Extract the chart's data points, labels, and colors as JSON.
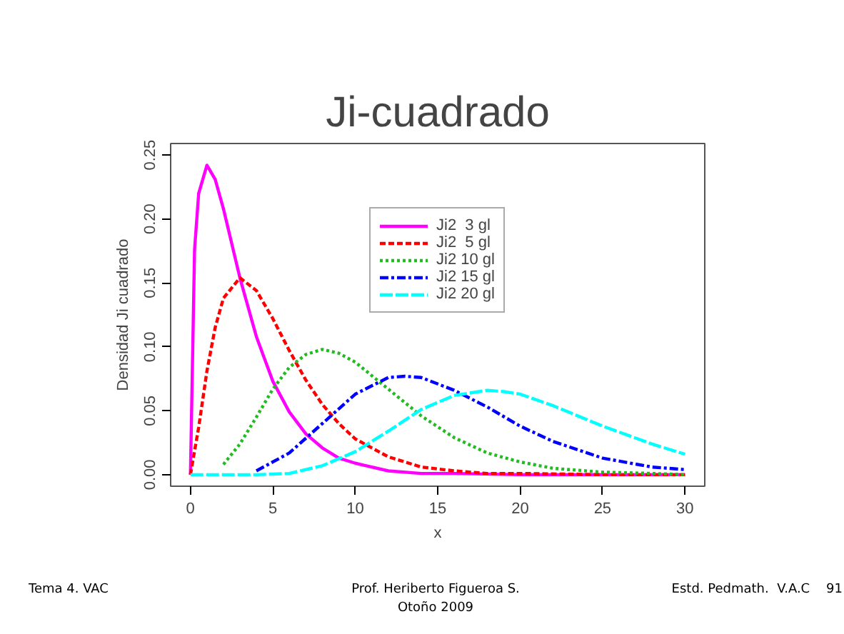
{
  "chart_data": {
    "type": "line",
    "title": "Ji-cuadrado",
    "xlabel": "x",
    "ylabel": "Densidad Ji cuadrado",
    "xlim": [
      -1.2,
      31.2
    ],
    "ylim": [
      -0.009,
      0.259
    ],
    "xticks": [
      0,
      5,
      10,
      15,
      20,
      25,
      30
    ],
    "yticks": [
      {
        "value": 0,
        "label": "0.00"
      },
      {
        "value": 0.05,
        "label": "0.05"
      },
      {
        "value": 0.1,
        "label": "0.10"
      },
      {
        "value": 0.15,
        "label": "0.15"
      },
      {
        "value": 0.2,
        "label": "0.20"
      },
      {
        "value": 0.25,
        "label": "0.25"
      }
    ],
    "grid": false,
    "legend": "top",
    "marker": "none",
    "series": [
      {
        "name": "Ji2  3 gl",
        "color": "#ff00ff",
        "line_style": "solid",
        "x": [
          0,
          0.25,
          0.5,
          1,
          1.5,
          2,
          3,
          4,
          5,
          6,
          7,
          8,
          9,
          10,
          12,
          14,
          16,
          20,
          30
        ],
        "values": [
          0,
          0.176,
          0.22,
          0.242,
          0.231,
          0.208,
          0.154,
          0.108,
          0.073,
          0.049,
          0.032,
          0.021,
          0.013,
          0.009,
          0.003,
          0.001,
          0.001,
          0,
          0
        ]
      },
      {
        "name": "Ji2  5 gl",
        "color": "#ff0000",
        "line_style": "dashed",
        "x": [
          0,
          0.5,
          1,
          1.5,
          2,
          3,
          4,
          5,
          6,
          7,
          8,
          9,
          10,
          12,
          14,
          16,
          18,
          20,
          25,
          30
        ],
        "values": [
          0,
          0.037,
          0.081,
          0.115,
          0.138,
          0.154,
          0.144,
          0.122,
          0.097,
          0.074,
          0.055,
          0.04,
          0.028,
          0.014,
          0.006,
          0.003,
          0.001,
          0.001,
          0,
          0
        ]
      },
      {
        "name": "Ji2 10 gl",
        "color": "#22bb22",
        "line_style": "dotted",
        "x": [
          2,
          3,
          4,
          5,
          6,
          7,
          8,
          9,
          10,
          12,
          14,
          16,
          18,
          20,
          22,
          25,
          28,
          30
        ],
        "values": [
          0.008,
          0.024,
          0.045,
          0.067,
          0.084,
          0.094,
          0.098,
          0.095,
          0.088,
          0.067,
          0.046,
          0.029,
          0.017,
          0.01,
          0.005,
          0.002,
          0.001,
          0
        ]
      },
      {
        "name": "Ji2 15 gl",
        "color": "#0000ff",
        "line_style": "dashdot",
        "x": [
          4,
          6,
          8,
          10,
          12,
          13,
          14,
          16,
          18,
          20,
          22,
          25,
          28,
          30
        ],
        "values": [
          0.003,
          0.017,
          0.04,
          0.063,
          0.076,
          0.077,
          0.076,
          0.066,
          0.053,
          0.038,
          0.026,
          0.013,
          0.006,
          0.004
        ]
      },
      {
        "name": "Ji2 20 gl",
        "color": "#00ffff",
        "line_style": "longdash",
        "x": [
          0,
          4,
          6,
          8,
          10,
          12,
          14,
          16,
          18,
          19,
          20,
          22,
          25,
          28,
          30
        ],
        "values": [
          0,
          0,
          0.001,
          0.007,
          0.018,
          0.034,
          0.051,
          0.062,
          0.066,
          0.065,
          0.063,
          0.054,
          0.038,
          0.024,
          0.016
        ]
      }
    ],
    "annotations": [
      "Tema 4. VAC",
      "Prof. Heriberto Figueroa S.\nOtoño 2009",
      "Estd. Pedmath.  V.A.C    91"
    ]
  }
}
